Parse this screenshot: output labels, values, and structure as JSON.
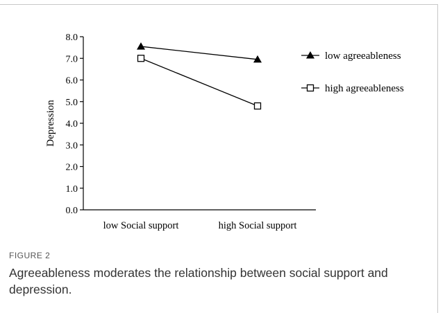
{
  "figure_label": "FIGURE 2",
  "caption": "Agreeableness moderates the relationship between social support and depression.",
  "chart_data": {
    "type": "line",
    "ylabel": "Depression",
    "xlabel": "",
    "categories": [
      "low Social support",
      "high Social support"
    ],
    "ylim": [
      0,
      8
    ],
    "yticks": [
      "0.0",
      "1.0",
      "2.0",
      "3.0",
      "4.0",
      "5.0",
      "6.0",
      "7.0",
      "8.0"
    ],
    "grid": false,
    "legend_position": "right",
    "series": [
      {
        "name": "low  agreeableness",
        "values": [
          7.55,
          6.95
        ],
        "marker": "triangle-filled",
        "color": "#000000"
      },
      {
        "name": "high agreeableness",
        "values": [
          7.0,
          4.8
        ],
        "marker": "square-open",
        "color": "#000000"
      }
    ]
  }
}
